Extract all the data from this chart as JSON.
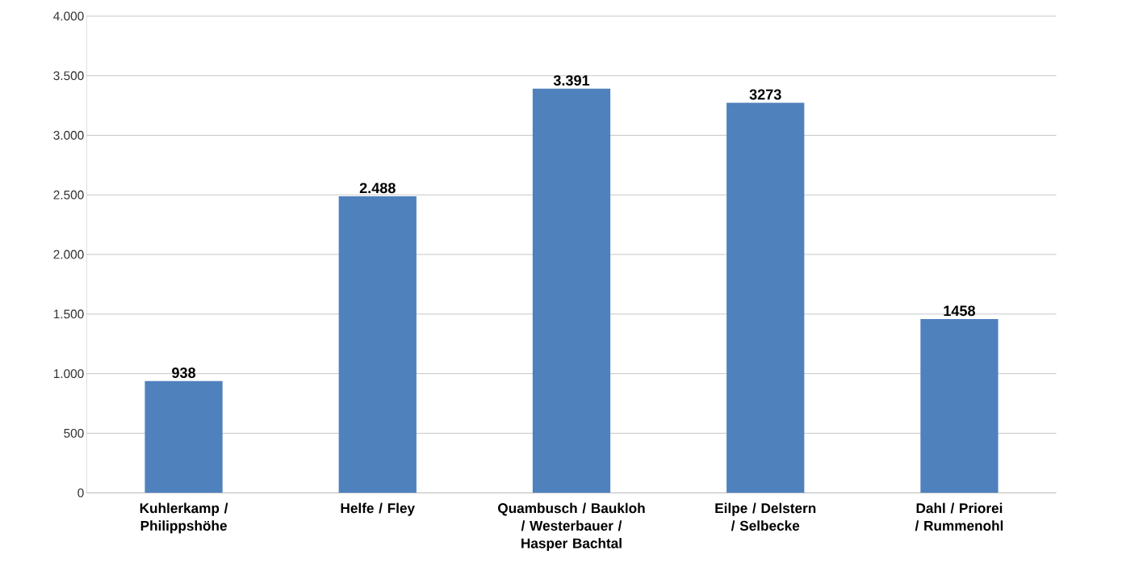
{
  "chart_data": {
    "type": "bar",
    "categories": [
      "Kuhlerkamp / Philippshöhe",
      "Helfe / Fley",
      "Quambusch / Baukloh / Westerbauer / Hasper Bachtal",
      "Eilpe / Delstern / Selbecke",
      "Dahl / Priorei / Rummenohl"
    ],
    "values": [
      938,
      2488,
      3391,
      3273,
      1458
    ],
    "value_labels": [
      "938",
      "2.488",
      "3.391",
      "3273",
      "1458"
    ],
    "color": "#4f81bd",
    "ylim": [
      0,
      4000
    ],
    "yticks": [
      0,
      500,
      {
        "value": 1000,
        "label": "1.000"
      },
      {
        "value": 1500,
        "label": "1.500"
      },
      {
        "value": 2000,
        "label": "2.000"
      },
      {
        "value": 2500,
        "label": "2.500"
      },
      {
        "value": 3000,
        "label": "3.000"
      },
      {
        "value": 3500,
        "label": "3.500"
      },
      {
        "value": 4000,
        "label": "4.000"
      }
    ],
    "grid": "y"
  }
}
